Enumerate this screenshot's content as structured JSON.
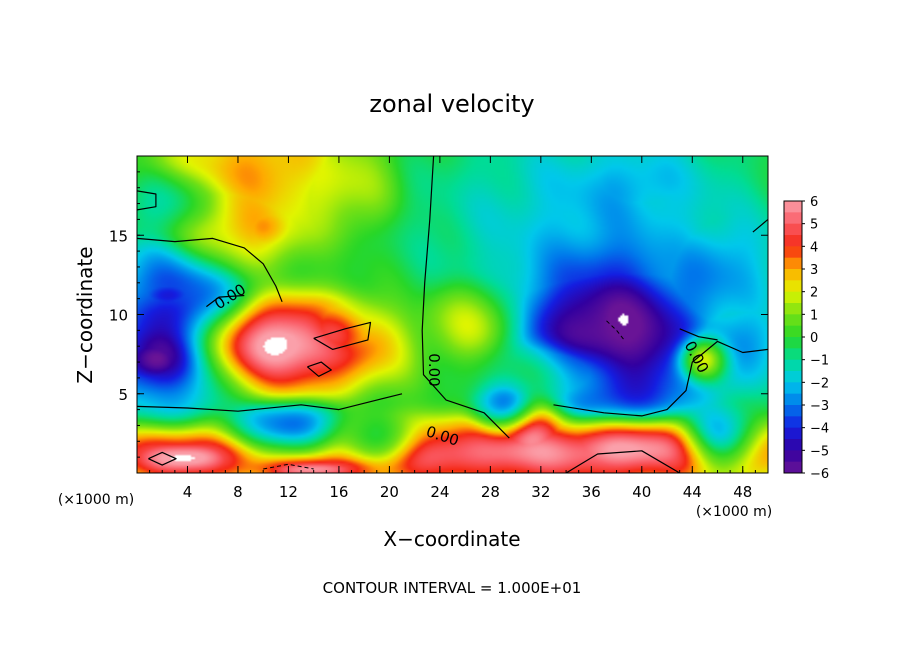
{
  "chart_data": {
    "type": "heatmap",
    "title": "zonal velocity",
    "xlabel": "X−coordinate",
    "ylabel": "Z−coordinate",
    "x_unit_left": "(×1000 m)",
    "x_unit_right": "(×1000 m)",
    "footer": "CONTOUR INTERVAL = 1.000E+01",
    "xlim": [
      0,
      50
    ],
    "ylim": [
      0,
      20
    ],
    "x_ticks": [
      4,
      8,
      12,
      16,
      20,
      24,
      28,
      32,
      36,
      40,
      44,
      48
    ],
    "x_tick_labels": [
      "4",
      "8",
      "12",
      "16",
      "20",
      "24",
      "28",
      "32",
      "36",
      "40",
      "44",
      "48"
    ],
    "y_ticks": [
      5,
      10,
      15
    ],
    "y_tick_labels": [
      "5",
      "10",
      "15"
    ],
    "colorbar": {
      "range": [
        -6,
        6
      ],
      "tick_values": [
        6,
        5,
        4,
        3,
        2,
        1,
        0,
        -1,
        -2,
        -3,
        -4,
        -5,
        -6
      ],
      "tick_labels": [
        "6",
        "5",
        "4",
        "3",
        "2",
        "1",
        "0",
        "−1",
        "−2",
        "−3",
        "−4",
        "−5",
        "−6"
      ]
    },
    "contour_labels": [
      {
        "text": "0.00",
        "x": 7.4,
        "y": 11.1,
        "angle": -32
      },
      {
        "text": "0.00",
        "x": 23.5,
        "y": 6.5,
        "angle": 90
      },
      {
        "text": "0.00",
        "x": 24.2,
        "y": 2.3,
        "angle": 18
      },
      {
        "text": "0.00",
        "x": 44.3,
        "y": 7.3,
        "angle": 62
      }
    ],
    "features": [
      {
        "v": 3.0,
        "x": 10,
        "y": 19,
        "rx": 6,
        "ry": 3
      },
      {
        "v": 2.4,
        "x": 8,
        "y": 16,
        "rx": 4,
        "ry": 2.5
      },
      {
        "v": 3.4,
        "x": 10,
        "y": 15.5,
        "rx": 2,
        "ry": 1.3
      },
      {
        "v": 1.5,
        "x": 16,
        "y": 18,
        "rx": 3,
        "ry": 2
      },
      {
        "v": -1.8,
        "x": 36,
        "y": 16,
        "rx": 10,
        "ry": 5
      },
      {
        "v": -2.6,
        "x": 39,
        "y": 18,
        "rx": 5,
        "ry": 2.4
      },
      {
        "v": -2.5,
        "x": 46,
        "y": 13,
        "rx": 4,
        "ry": 3
      },
      {
        "v": -1.5,
        "x": 3,
        "y": 17,
        "rx": 3,
        "ry": 1.5
      },
      {
        "v": 2.0,
        "x": 27,
        "y": 9.5,
        "rx": 3,
        "ry": 2
      },
      {
        "v": 0.5,
        "x": 33,
        "y": 6.5,
        "rx": 5,
        "ry": 1.5
      },
      {
        "v": -4.6,
        "x": 3,
        "y": 9,
        "rx": 4.5,
        "ry": 4
      },
      {
        "v": -6.8,
        "x": 1.5,
        "y": 7.2,
        "rx": 2.5,
        "ry": 1.4
      },
      {
        "v": -3.5,
        "x": 2.5,
        "y": 11.2,
        "rx": 2.2,
        "ry": 0.8
      },
      {
        "v": 5.2,
        "x": 11.5,
        "y": 8,
        "rx": 6.5,
        "ry": 2.4
      },
      {
        "v": 7.0,
        "x": 11.5,
        "y": 8.3,
        "rx": 4.8,
        "ry": 1.6
      },
      {
        "v": 2.5,
        "x": 16,
        "y": 9,
        "rx": 2,
        "ry": 1.2
      },
      {
        "v": -5.0,
        "x": 37.5,
        "y": 9,
        "rx": 7,
        "ry": 5
      },
      {
        "v": -7.0,
        "x": 37.8,
        "y": 9.5,
        "rx": 5,
        "ry": 3.8
      },
      {
        "v": -4.0,
        "x": 29.5,
        "y": 4,
        "rx": 2,
        "ry": 1.5
      },
      {
        "v": 5.0,
        "x": 45,
        "y": 7.3,
        "rx": 1.8,
        "ry": 1.2
      },
      {
        "v": -2.8,
        "x": 47.5,
        "y": 8,
        "rx": 2.5,
        "ry": 2
      },
      {
        "v": 5.0,
        "x": 25,
        "y": 1.3,
        "rx": 26,
        "ry": 1.6
      },
      {
        "v": 6.8,
        "x": 4,
        "y": 1.0,
        "rx": 4,
        "ry": 1.0
      },
      {
        "v": 6.8,
        "x": 38.5,
        "y": 1.5,
        "rx": 7,
        "ry": 1.5
      },
      {
        "v": 6.0,
        "x": 31,
        "y": 2.5,
        "rx": 2.5,
        "ry": 2
      },
      {
        "v": -5.0,
        "x": 12,
        "y": 2.3,
        "rx": 4,
        "ry": 1.5
      },
      {
        "v": -3.5,
        "x": 19,
        "y": 1.8,
        "rx": 3,
        "ry": 1.2
      },
      {
        "v": -4.5,
        "x": 46,
        "y": 2,
        "rx": 2.5,
        "ry": 1.5
      },
      {
        "v": 6.5,
        "x": 14,
        "y": 0.3,
        "rx": 4,
        "ry": 0.6
      }
    ],
    "zero_contours": [
      [
        [
          0,
          14.8
        ],
        [
          3,
          14.6
        ],
        [
          6,
          14.8
        ],
        [
          8.5,
          14.2
        ],
        [
          10,
          13.2
        ],
        [
          11,
          11.8
        ],
        [
          11.5,
          10.8
        ]
      ],
      [
        [
          0,
          16.6
        ],
        [
          1.5,
          16.8
        ],
        [
          1.5,
          17.6
        ],
        [
          0,
          17.8
        ]
      ],
      [
        [
          23.5,
          20
        ],
        [
          23.2,
          16
        ],
        [
          22.8,
          12
        ],
        [
          22.6,
          9
        ],
        [
          22.7,
          6.2
        ],
        [
          24.5,
          4.6
        ],
        [
          27.5,
          3.8
        ],
        [
          29.5,
          2.2
        ]
      ],
      [
        [
          5.5,
          10.5
        ],
        [
          6.5,
          11.1
        ],
        [
          8.5,
          11.2
        ]
      ],
      [
        [
          0,
          4.2
        ],
        [
          4,
          4.1
        ],
        [
          8,
          3.9
        ],
        [
          13,
          4.3
        ],
        [
          16,
          4.0
        ],
        [
          19,
          4.6
        ],
        [
          21,
          5.0
        ]
      ],
      [
        [
          14,
          8.5
        ],
        [
          16.5,
          9.1
        ],
        [
          18.5,
          9.5
        ],
        [
          18.3,
          8.4
        ],
        [
          15.5,
          7.8
        ],
        [
          14,
          8.5
        ]
      ],
      [
        [
          33,
          4.3
        ],
        [
          37,
          3.8
        ],
        [
          40,
          3.6
        ],
        [
          42,
          4.0
        ],
        [
          43.5,
          5.2
        ],
        [
          44,
          7
        ],
        [
          46,
          8.3
        ],
        [
          48,
          7.6
        ],
        [
          50,
          7.8
        ]
      ],
      [
        [
          43,
          9.1
        ],
        [
          44.5,
          8.6
        ],
        [
          46,
          8.4
        ]
      ],
      [
        [
          13.5,
          6.7
        ],
        [
          14.6,
          7.0
        ],
        [
          15.4,
          6.5
        ],
        [
          14.4,
          6.1
        ],
        [
          13.5,
          6.7
        ]
      ],
      [
        [
          0.9,
          0.9
        ],
        [
          2.0,
          1.3
        ],
        [
          3.1,
          0.9
        ],
        [
          2.0,
          0.5
        ],
        [
          0.9,
          0.9
        ]
      ],
      [
        [
          34.0,
          0.0
        ],
        [
          36.5,
          1.2
        ],
        [
          40,
          1.4
        ],
        [
          43,
          0.0
        ]
      ],
      [
        [
          48.8,
          15.2
        ],
        [
          50,
          16.0
        ]
      ]
    ],
    "dashed_contours": [
      [
        [
          37.2,
          9.6
        ],
        [
          38.0,
          9.0
        ],
        [
          38.6,
          8.4
        ]
      ],
      [
        [
          10.0,
          0.25
        ],
        [
          12.0,
          0.55
        ],
        [
          14.0,
          0.25
        ]
      ]
    ]
  }
}
